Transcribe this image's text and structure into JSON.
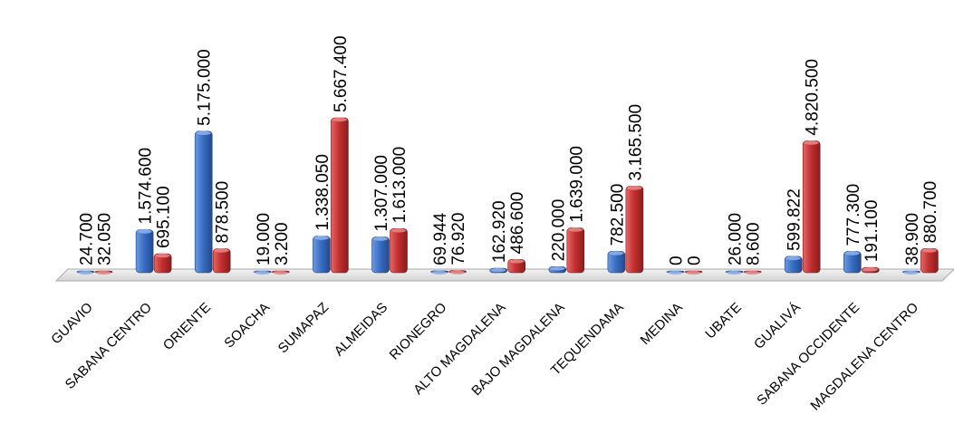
{
  "chart_data": {
    "type": "bar",
    "title": "",
    "xlabel": "",
    "ylabel": "",
    "ylim": [
      0,
      5667400
    ],
    "grid": false,
    "legend": "none",
    "categories": [
      "GUAVIO",
      "SABANA CENTRO",
      "ORIENTE",
      "SOACHA",
      "SUMAPAZ",
      "ALMEIDAS",
      "RIONEGRO",
      "ALTO MAGDALENA",
      "BAJO MAGDALENA",
      "TEQUENDAMA",
      "MEDINA",
      "UBATE",
      "GUALIVÁ",
      "SABANA OCCIDENTE",
      "MAGDALENA CENTRO"
    ],
    "series": [
      {
        "color": "#3a6fc4",
        "values": [
          24700,
          1574600,
          5175000,
          19000,
          1338050,
          1307000,
          69944,
          162920,
          220000,
          782500,
          0,
          26000,
          599822,
          777300,
          38900
        ],
        "labels": [
          "24.700",
          "1.574.600",
          "5.175.000",
          "19.000",
          "1.338.050",
          "1.307.000",
          "69.944",
          "162.920",
          "220.000",
          "782.500",
          "0",
          "26.000",
          "599.822",
          "777.300",
          "38.900"
        ]
      },
      {
        "color": "#c53030",
        "values": [
          32050,
          695100,
          878500,
          3200,
          5667400,
          1613000,
          76920,
          486600,
          1639000,
          3165500,
          0,
          8600,
          4820500,
          191100,
          880700
        ],
        "labels": [
          "32.050",
          "695.100",
          "878.500",
          "3.200",
          "5.667.400",
          "1.613.000",
          "76.920",
          "486.600",
          "1.639.000",
          "3.165.500",
          "0",
          "8.600",
          "4.820.500",
          "191.100",
          "880.700"
        ]
      }
    ]
  }
}
